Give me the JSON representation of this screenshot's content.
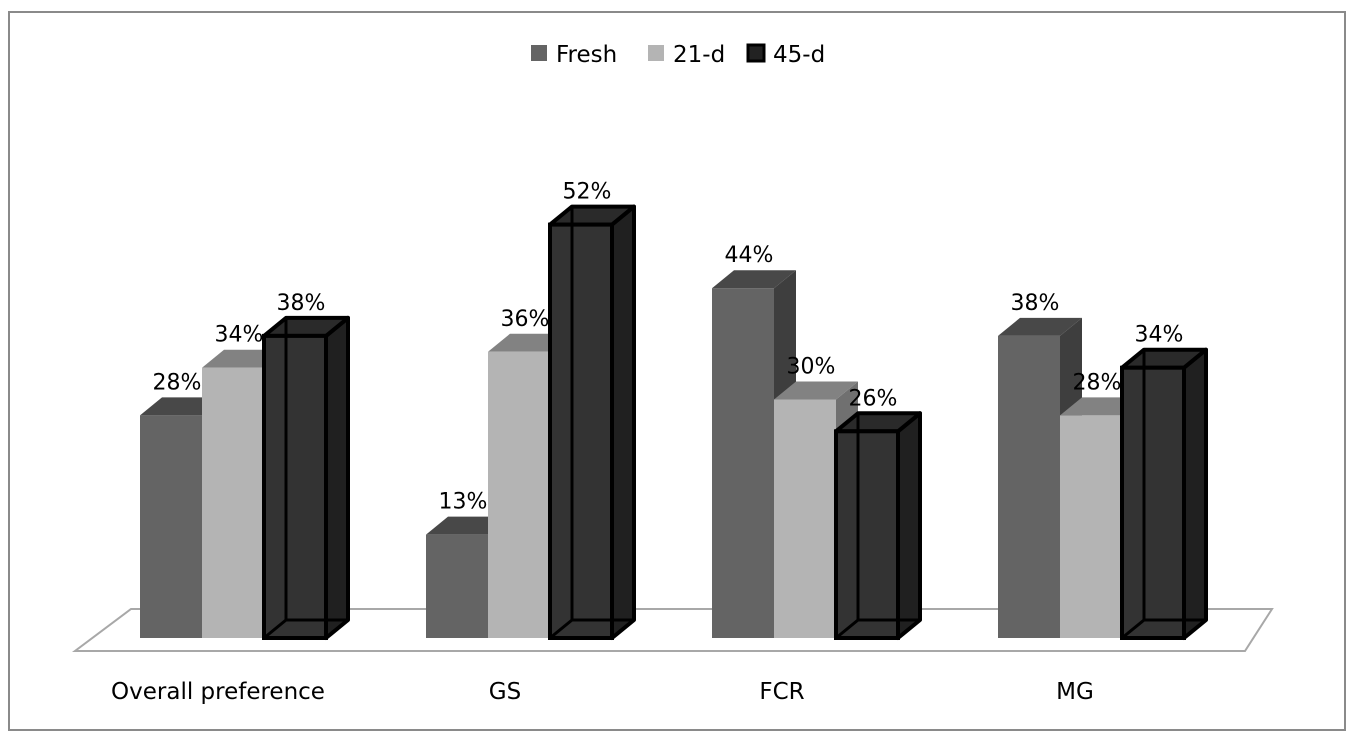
{
  "chart_data": {
    "type": "bar",
    "categories": [
      "Overall preference",
      "GS",
      "FCR",
      "MG"
    ],
    "series": [
      {
        "name": "Fresh",
        "values": [
          28,
          13,
          44,
          38
        ],
        "labels": [
          "28%",
          "13%",
          "44%",
          "38%"
        ],
        "color": "#646464"
      },
      {
        "name": "21-d",
        "values": [
          34,
          36,
          30,
          28
        ],
        "labels": [
          "34%",
          "36%",
          "30%",
          "28%"
        ],
        "color": "#b4b4b4"
      },
      {
        "name": "45-d",
        "values": [
          38,
          52,
          26,
          34
        ],
        "labels": [
          "38%",
          "52%",
          "26%",
          "34%"
        ],
        "color": "#333333"
      }
    ],
    "legend_position": "top",
    "grid": false,
    "ylim": [
      0,
      60
    ],
    "title": "",
    "xlabel": "",
    "ylabel": ""
  }
}
